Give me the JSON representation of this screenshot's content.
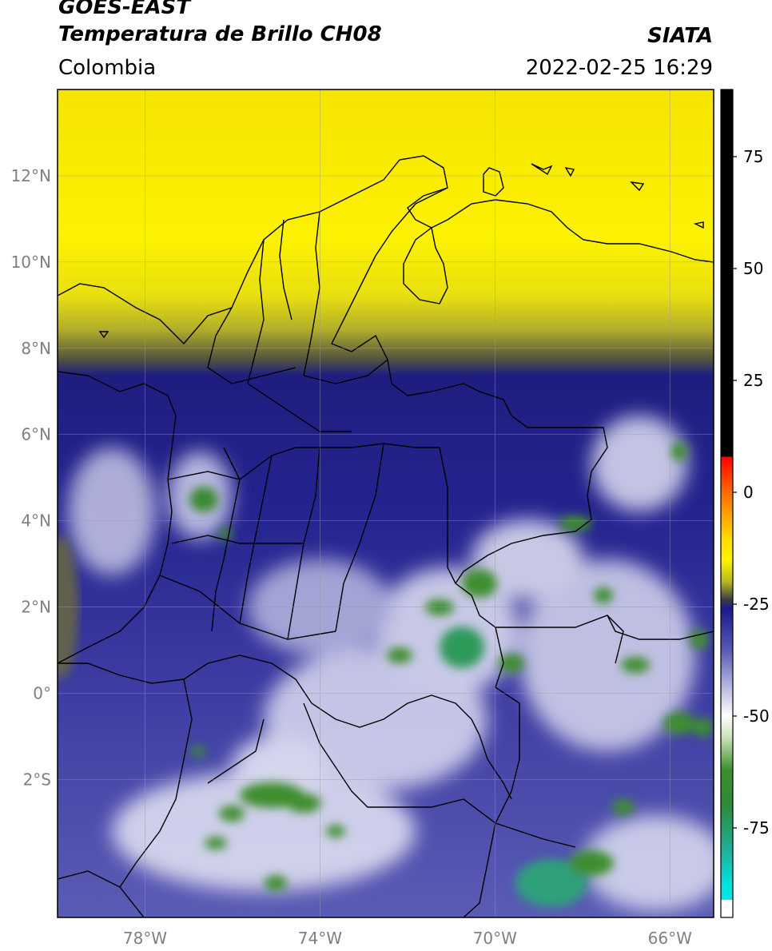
{
  "header": {
    "satellite": "GOES-EAST",
    "product": "Temperatura de Brillo CH08",
    "region": "Colombia",
    "agency": "SIATA",
    "datetime": "2022-02-25 16:29"
  },
  "map": {
    "lon_range": [
      -80,
      -65
    ],
    "lat_range": [
      -5.2,
      14
    ],
    "lat_ticks": [
      {
        "value": 12,
        "label": "12°N"
      },
      {
        "value": 10,
        "label": "10°N"
      },
      {
        "value": 8,
        "label": "8°N"
      },
      {
        "value": 6,
        "label": "6°N"
      },
      {
        "value": 4,
        "label": "4°N"
      },
      {
        "value": 2,
        "label": "2°N"
      },
      {
        "value": 0,
        "label": "0°"
      },
      {
        "value": -2,
        "label": "2°S"
      }
    ],
    "lon_ticks": [
      {
        "value": -78,
        "label": "78°W"
      },
      {
        "value": -74,
        "label": "74°W"
      },
      {
        "value": -70,
        "label": "70°W"
      },
      {
        "value": -66,
        "label": "66°W"
      }
    ]
  },
  "colorbar": {
    "range": [
      -95,
      90
    ],
    "ticks": [
      {
        "value": 75,
        "label": "75"
      },
      {
        "value": 50,
        "label": "50"
      },
      {
        "value": 25,
        "label": "25"
      },
      {
        "value": 0,
        "label": "0"
      },
      {
        "value": -25,
        "label": "-25"
      },
      {
        "value": -50,
        "label": "-50"
      },
      {
        "value": -75,
        "label": "-75"
      }
    ],
    "stops": [
      {
        "value": 90,
        "color": "#000000"
      },
      {
        "value": 8,
        "color": "#000000"
      },
      {
        "value": 7.9,
        "color": "#ff0000"
      },
      {
        "value": 0,
        "color": "#ff6a00"
      },
      {
        "value": -10,
        "color": "#ffd800"
      },
      {
        "value": -15,
        "color": "#fff500"
      },
      {
        "value": -20,
        "color": "#b5b820"
      },
      {
        "value": -24,
        "color": "#3c3c44"
      },
      {
        "value": -26,
        "color": "#1a1a8a"
      },
      {
        "value": -35,
        "color": "#5658b0"
      },
      {
        "value": -45,
        "color": "#c8c8e8"
      },
      {
        "value": -50,
        "color": "#ffffff"
      },
      {
        "value": -55,
        "color": "#c6e0b4"
      },
      {
        "value": -62,
        "color": "#3e8e2e"
      },
      {
        "value": -70,
        "color": "#2e8a3a"
      },
      {
        "value": -80,
        "color": "#20b09a"
      },
      {
        "value": -88,
        "color": "#00e5e0"
      },
      {
        "value": -91,
        "color": "#00e5e0"
      },
      {
        "value": -91.1,
        "color": "#ffffff"
      },
      {
        "value": -95,
        "color": "#ffffff"
      }
    ]
  }
}
